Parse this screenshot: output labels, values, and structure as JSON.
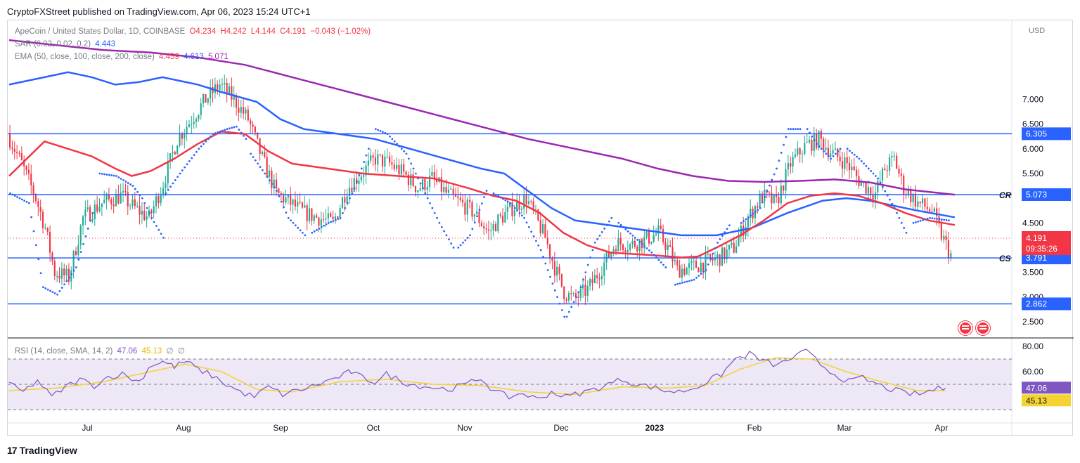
{
  "publisher": "CryptoFXStreet published on TradingView.com, Apr 06, 2023 15:24 UTC+1",
  "footer_brand": "TradingView",
  "legend": {
    "symbol": "ApeCoin / United States Dollar, 1D, COINBASE",
    "open": "O4.234",
    "high": "H4.242",
    "low": "L4.144",
    "close": "C4.191",
    "change": "−0.043 (−1.02%)",
    "sar_label": "SAR (0.02, 0.02, 0.2)",
    "sar_value": "4.443",
    "ema_label": "EMA (50, close, 100, close, 200, close)",
    "ema50_value": "4.459",
    "ema100_value": "4.613",
    "ema200_value": "5.071",
    "rsi_label": "RSI (14, close, SMA, 14, 2)",
    "rsi_value": "47.06",
    "rsi_sma_value": "45.13",
    "rsi_extra1": "∅",
    "rsi_extra2": "∅"
  },
  "colors": {
    "up": "#22ab94",
    "down": "#f23645",
    "ema50": "#f23645",
    "ema100": "#2962ff",
    "ema200": "#9c27b0",
    "sar": "#2962ff",
    "level": "#2962ff",
    "rsi": "#7e57c2",
    "rsi_sma": "#f5d332",
    "rsi_band": "#ede7f6"
  },
  "price_label": {
    "value": "4.191",
    "countdown": "09:35:26"
  },
  "chart_data": {
    "type": "candlestick",
    "price_axis": {
      "unit": "USD",
      "ticks": [
        "7.000",
        "6.500",
        "6.000",
        "5.500",
        "5.000",
        "4.500",
        "3.500",
        "3.000",
        "2.500"
      ]
    },
    "time_axis": [
      "Jul",
      "Aug",
      "Sep",
      "Oct",
      "Nov",
      "Dec",
      "2023",
      "Feb",
      "Mar",
      "Apr"
    ],
    "levels": [
      {
        "value": 6.305,
        "label": "6.305",
        "tag": ""
      },
      {
        "value": 5.073,
        "label": "5.073",
        "tag": "CR"
      },
      {
        "value": 3.791,
        "label": "3.791",
        "tag": "CS"
      },
      {
        "value": 2.862,
        "label": "2.862",
        "tag": ""
      }
    ],
    "last_price": 4.191,
    "ema50": [
      [
        0,
        5.45
      ],
      [
        15,
        6.15
      ],
      [
        25,
        6.0
      ],
      [
        35,
        5.85
      ],
      [
        45,
        5.6
      ],
      [
        52,
        5.45
      ],
      [
        60,
        5.55
      ],
      [
        70,
        5.8
      ],
      [
        80,
        6.1
      ],
      [
        90,
        6.35
      ],
      [
        100,
        6.3
      ],
      [
        110,
        5.95
      ],
      [
        120,
        5.7
      ],
      [
        135,
        5.6
      ],
      [
        150,
        5.5
      ],
      [
        165,
        5.45
      ],
      [
        180,
        5.4
      ],
      [
        195,
        5.2
      ],
      [
        205,
        5.05
      ],
      [
        215,
        4.95
      ],
      [
        225,
        4.7
      ],
      [
        235,
        4.3
      ],
      [
        245,
        4.05
      ],
      [
        255,
        3.9
      ],
      [
        265,
        3.87
      ],
      [
        275,
        3.84
      ],
      [
        285,
        3.8
      ],
      [
        292,
        3.82
      ],
      [
        300,
        4.0
      ],
      [
        310,
        4.25
      ],
      [
        320,
        4.55
      ],
      [
        330,
        4.9
      ],
      [
        340,
        5.05
      ],
      [
        350,
        5.1
      ],
      [
        360,
        5.05
      ],
      [
        370,
        4.9
      ],
      [
        380,
        4.7
      ],
      [
        390,
        4.55
      ],
      [
        401,
        4.459
      ]
    ],
    "ema100": [
      [
        0,
        7.3
      ],
      [
        15,
        7.45
      ],
      [
        25,
        7.55
      ],
      [
        35,
        7.45
      ],
      [
        45,
        7.3
      ],
      [
        55,
        7.35
      ],
      [
        65,
        7.45
      ],
      [
        80,
        7.3
      ],
      [
        90,
        7.15
      ],
      [
        105,
        6.95
      ],
      [
        115,
        6.6
      ],
      [
        125,
        6.4
      ],
      [
        140,
        6.3
      ],
      [
        155,
        6.2
      ],
      [
        170,
        6.0
      ],
      [
        185,
        5.8
      ],
      [
        200,
        5.6
      ],
      [
        210,
        5.5
      ],
      [
        220,
        5.15
      ],
      [
        230,
        4.8
      ],
      [
        240,
        4.55
      ],
      [
        255,
        4.45
      ],
      [
        270,
        4.35
      ],
      [
        285,
        4.25
      ],
      [
        300,
        4.25
      ],
      [
        315,
        4.4
      ],
      [
        330,
        4.7
      ],
      [
        345,
        4.95
      ],
      [
        355,
        5.0
      ],
      [
        365,
        4.95
      ],
      [
        375,
        4.85
      ],
      [
        385,
        4.75
      ],
      [
        401,
        4.613
      ]
    ],
    "ema200": [
      [
        0,
        8.2
      ],
      [
        20,
        8.1
      ],
      [
        40,
        8.0
      ],
      [
        60,
        7.95
      ],
      [
        80,
        7.85
      ],
      [
        100,
        7.7
      ],
      [
        120,
        7.45
      ],
      [
        140,
        7.2
      ],
      [
        160,
        6.95
      ],
      [
        180,
        6.7
      ],
      [
        200,
        6.45
      ],
      [
        220,
        6.2
      ],
      [
        240,
        6.0
      ],
      [
        260,
        5.8
      ],
      [
        275,
        5.6
      ],
      [
        290,
        5.45
      ],
      [
        305,
        5.35
      ],
      [
        320,
        5.33
      ],
      [
        335,
        5.35
      ],
      [
        350,
        5.38
      ],
      [
        365,
        5.32
      ],
      [
        380,
        5.18
      ],
      [
        401,
        5.071
      ]
    ],
    "sar_segments": [
      [
        [
          0,
          5.1
        ],
        [
          8,
          4.9
        ],
        [
          14,
          3.2
        ],
        [
          20,
          3.05
        ],
        [
          28,
          3.6
        ],
        [
          35,
          4.7
        ]
      ],
      [
        [
          38,
          5.5
        ],
        [
          45,
          5.45
        ],
        [
          52,
          5.25
        ],
        [
          56,
          5.0
        ],
        [
          60,
          4.6
        ],
        [
          65,
          4.2
        ]
      ],
      [
        [
          66,
          5.1
        ],
        [
          72,
          5.5
        ],
        [
          80,
          6.0
        ],
        [
          86,
          6.3
        ],
        [
          92,
          6.4
        ],
        [
          96,
          6.45
        ],
        [
          100,
          6.2
        ]
      ],
      [
        [
          102,
          5.9
        ],
        [
          108,
          5.5
        ],
        [
          113,
          5.15
        ],
        [
          118,
          4.6
        ],
        [
          125,
          4.25
        ]
      ],
      [
        [
          128,
          4.3
        ],
        [
          135,
          4.5
        ],
        [
          140,
          4.6
        ],
        [
          146,
          5.2
        ],
        [
          152,
          6.0
        ]
      ],
      [
        [
          155,
          6.4
        ],
        [
          160,
          6.3
        ],
        [
          168,
          5.9
        ],
        [
          175,
          5.2
        ],
        [
          182,
          4.5
        ],
        [
          188,
          4.0
        ]
      ],
      [
        [
          190,
          4.0
        ],
        [
          195,
          4.25
        ],
        [
          202,
          5.15
        ]
      ],
      [
        [
          205,
          5.1
        ],
        [
          212,
          4.9
        ],
        [
          218,
          4.6
        ],
        [
          225,
          3.95
        ],
        [
          232,
          3.0
        ],
        [
          235,
          2.6
        ]
      ],
      [
        [
          236,
          2.6
        ],
        [
          242,
          3.2
        ],
        [
          248,
          4.1
        ],
        [
          255,
          4.6
        ]
      ],
      [
        [
          258,
          4.5
        ],
        [
          265,
          4.2
        ],
        [
          272,
          3.9
        ],
        [
          278,
          3.6
        ]
      ],
      [
        [
          282,
          3.25
        ],
        [
          290,
          3.35
        ],
        [
          295,
          3.55
        ],
        [
          300,
          4.1
        ],
        [
          305,
          4.45
        ]
      ],
      [
        [
          310,
          4.5
        ],
        [
          318,
          4.8
        ],
        [
          325,
          5.6
        ],
        [
          330,
          6.4
        ],
        [
          335,
          6.4
        ]
      ],
      [
        [
          338,
          6.4
        ],
        [
          342,
          6.1
        ],
        [
          348,
          5.8
        ],
        [
          352,
          6.0
        ]
      ],
      [
        [
          355,
          6.0
        ],
        [
          360,
          5.8
        ],
        [
          368,
          5.4
        ],
        [
          375,
          4.8
        ],
        [
          380,
          4.3
        ]
      ],
      [
        [
          383,
          4.5
        ],
        [
          390,
          4.6
        ],
        [
          398,
          4.55
        ]
      ]
    ],
    "rsi": [
      [
        0,
        50
      ],
      [
        6,
        44
      ],
      [
        12,
        53
      ],
      [
        18,
        40
      ],
      [
        24,
        48
      ],
      [
        30,
        54
      ],
      [
        36,
        49
      ],
      [
        42,
        56
      ],
      [
        48,
        58
      ],
      [
        55,
        52
      ],
      [
        60,
        65
      ],
      [
        65,
        68
      ],
      [
        70,
        64
      ],
      [
        75,
        68
      ],
      [
        80,
        62
      ],
      [
        86,
        57
      ],
      [
        92,
        50
      ],
      [
        98,
        44
      ],
      [
        104,
        40
      ],
      [
        110,
        48
      ],
      [
        116,
        42
      ],
      [
        122,
        45
      ],
      [
        128,
        48
      ],
      [
        134,
        52
      ],
      [
        140,
        56
      ],
      [
        145,
        60
      ],
      [
        150,
        55
      ],
      [
        155,
        52
      ],
      [
        160,
        58
      ],
      [
        165,
        54
      ],
      [
        170,
        50
      ],
      [
        178,
        48
      ],
      [
        186,
        46
      ],
      [
        194,
        50
      ],
      [
        200,
        55
      ],
      [
        206,
        44
      ],
      [
        212,
        40
      ],
      [
        218,
        43
      ],
      [
        224,
        38
      ],
      [
        230,
        44
      ],
      [
        236,
        40
      ],
      [
        242,
        43
      ],
      [
        248,
        46
      ],
      [
        254,
        50
      ],
      [
        260,
        54
      ],
      [
        266,
        50
      ],
      [
        272,
        48
      ],
      [
        278,
        45
      ],
      [
        284,
        44
      ],
      [
        290,
        47
      ],
      [
        296,
        52
      ],
      [
        302,
        58
      ],
      [
        308,
        70
      ],
      [
        314,
        74
      ],
      [
        320,
        68
      ],
      [
        326,
        65
      ],
      [
        332,
        71
      ],
      [
        338,
        76
      ],
      [
        344,
        66
      ],
      [
        350,
        58
      ],
      [
        356,
        52
      ],
      [
        362,
        55
      ],
      [
        368,
        50
      ],
      [
        374,
        46
      ],
      [
        380,
        43
      ],
      [
        386,
        42
      ],
      [
        392,
        46
      ],
      [
        397,
        47.06
      ]
    ],
    "rsi_sma": [
      [
        0,
        45
      ],
      [
        20,
        47
      ],
      [
        40,
        52
      ],
      [
        60,
        60
      ],
      [
        75,
        66
      ],
      [
        90,
        60
      ],
      [
        105,
        46
      ],
      [
        120,
        44
      ],
      [
        140,
        52
      ],
      [
        160,
        54
      ],
      [
        180,
        50
      ],
      [
        200,
        49
      ],
      [
        220,
        44
      ],
      [
        240,
        42
      ],
      [
        260,
        48
      ],
      [
        280,
        47
      ],
      [
        295,
        49
      ],
      [
        310,
        62
      ],
      [
        325,
        71
      ],
      [
        340,
        70
      ],
      [
        355,
        60
      ],
      [
        370,
        52
      ],
      [
        385,
        45
      ],
      [
        397,
        45.13
      ]
    ],
    "rsi_axis": {
      "ticks": [
        "80.00",
        "60.00"
      ],
      "upper_band": 70,
      "mid": 50,
      "lower_band": 30,
      "ylim": [
        20,
        85
      ]
    },
    "ylim": [
      2.2,
      8.6
    ]
  }
}
